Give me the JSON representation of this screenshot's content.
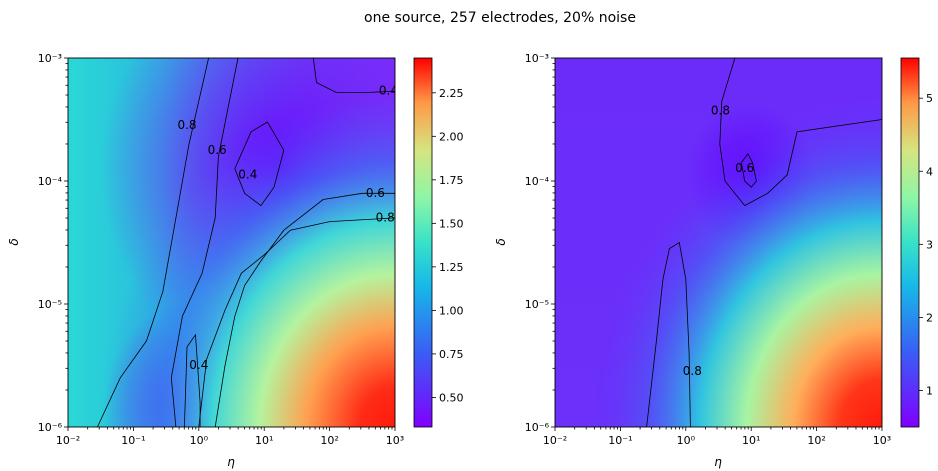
{
  "figure": {
    "title": "one source, 257 electrodes, 20% noise"
  },
  "chart_data": [
    {
      "type": "heatmap",
      "panel": "left",
      "xlabel": "η",
      "ylabel": "δ",
      "xscale": "log",
      "yscale": "log",
      "xlim": [
        0.01,
        1000
      ],
      "ylim": [
        1e-06,
        0.001
      ],
      "xticks": [
        {
          "value": 0.01,
          "label": "10⁻²"
        },
        {
          "value": 0.1,
          "label": "10⁻¹"
        },
        {
          "value": 1,
          "label": "10⁰"
        },
        {
          "value": 10,
          "label": "10¹"
        },
        {
          "value": 100,
          "label": "10²"
        },
        {
          "value": 1000,
          "label": "10³"
        }
      ],
      "yticks": [
        {
          "value": 1e-06,
          "label": "10⁻⁶"
        },
        {
          "value": 1e-05,
          "label": "10⁻⁵"
        },
        {
          "value": 0.0001,
          "label": "10⁻⁴"
        },
        {
          "value": 0.001,
          "label": "10⁻³"
        }
      ],
      "colormap": "rainbow",
      "colorbar": {
        "range": [
          0.33,
          2.45
        ],
        "ticks": [
          {
            "value": 0.5,
            "label": "0.50"
          },
          {
            "value": 0.75,
            "label": "0.75"
          },
          {
            "value": 1.0,
            "label": "1.00"
          },
          {
            "value": 1.25,
            "label": "1.25"
          },
          {
            "value": 1.5,
            "label": "1.50"
          },
          {
            "value": 1.75,
            "label": "1.75"
          },
          {
            "value": 2.0,
            "label": "2.00"
          },
          {
            "value": 2.25,
            "label": "2.25"
          }
        ]
      },
      "z_grid": {
        "x_log10": [
          -2,
          -1.5,
          -1,
          -0.5,
          0,
          0.5,
          1,
          1.5,
          2,
          2.5,
          3
        ],
        "y_log10": [
          -6,
          -5.5,
          -5,
          -4.5,
          -4,
          -3.5,
          -3
        ],
        "values": [
          [
            0.75,
            0.72,
            0.66,
            0.58,
            0.36,
            0.75,
            1.25,
            1.75,
            2.25,
            2.42,
            2.45
          ],
          [
            0.82,
            0.78,
            0.72,
            0.62,
            0.42,
            0.66,
            1.0,
            1.35,
            1.7,
            1.85,
            1.9
          ],
          [
            0.9,
            0.85,
            0.78,
            0.66,
            0.45,
            0.58,
            0.8,
            1.0,
            1.2,
            1.3,
            1.35
          ],
          [
            0.98,
            0.94,
            0.86,
            0.72,
            0.56,
            0.48,
            0.62,
            0.82,
            0.9,
            0.92,
            0.92
          ],
          [
            1.05,
            1.02,
            0.95,
            0.8,
            0.68,
            0.42,
            0.36,
            0.5,
            0.58,
            0.62,
            0.64
          ],
          [
            1.05,
            1.03,
            0.98,
            0.86,
            0.72,
            0.55,
            0.4,
            0.44,
            0.45,
            0.46,
            0.46
          ],
          [
            1.02,
            1.0,
            0.97,
            0.9,
            0.78,
            0.6,
            0.45,
            0.38,
            0.36,
            0.36,
            0.36
          ]
        ]
      },
      "contours": [
        {
          "level": 0.4,
          "label": "0.4",
          "paths": [
            [
              [
                -0.22,
                -6
              ],
              [
                -0.18,
                -5.35
              ],
              [
                -0.05,
                -5.25
              ],
              [
                0.02,
                -5.8
              ],
              [
                0.02,
                -6
              ]
            ],
            [
              [
                0.55,
                -3.9
              ],
              [
                0.8,
                -3.6
              ],
              [
                1.05,
                -3.52
              ],
              [
                1.3,
                -3.75
              ],
              [
                1.15,
                -4.05
              ],
              [
                0.95,
                -4.2
              ],
              [
                0.7,
                -4.1
              ],
              [
                0.55,
                -3.9
              ]
            ],
            [
              [
                1.75,
                -3
              ],
              [
                1.8,
                -3.2
              ],
              [
                2.1,
                -3.28
              ],
              [
                2.6,
                -3.28
              ],
              [
                3,
                -3.27
              ]
            ]
          ],
          "labels": [
            {
              "x": 0.0,
              "y": -5.5
            },
            {
              "x": 0.75,
              "y": -3.95
            },
            {
              "x": 2.9,
              "y": -3.27
            }
          ]
        },
        {
          "level": 0.6,
          "label": "0.6",
          "paths": [
            [
              [
                -0.35,
                -6
              ],
              [
                -0.42,
                -5.6
              ],
              [
                -0.25,
                -5.1
              ],
              [
                0.05,
                -4.75
              ],
              [
                0.25,
                -4.3
              ],
              [
                0.3,
                -3.8
              ],
              [
                0.45,
                -3.4
              ],
              [
                0.6,
                -3
              ]
            ],
            [
              [
                0.25,
                -6
              ],
              [
                0.4,
                -5.5
              ],
              [
                0.55,
                -5.1
              ],
              [
                0.7,
                -4.85
              ],
              [
                0.95,
                -4.65
              ],
              [
                1.3,
                -4.4
              ],
              [
                1.9,
                -4.15
              ],
              [
                2.5,
                -4.1
              ],
              [
                3,
                -4.1
              ]
            ]
          ],
          "labels": [
            {
              "x": 0.28,
              "y": -3.75
            },
            {
              "x": 2.7,
              "y": -4.1
            }
          ]
        },
        {
          "level": 0.8,
          "label": "0.8",
          "paths": [
            [
              [
                -1.55,
                -6
              ],
              [
                -1.2,
                -5.6
              ],
              [
                -0.8,
                -5.3
              ],
              [
                -0.55,
                -4.9
              ],
              [
                -0.35,
                -4.3
              ],
              [
                -0.15,
                -3.7
              ],
              [
                0.15,
                -3
              ]
            ],
            [
              [
                0.0,
                -6
              ],
              [
                0.12,
                -5.45
              ],
              [
                0.4,
                -5.05
              ],
              [
                0.65,
                -4.75
              ],
              [
                1.0,
                -4.6
              ],
              [
                1.4,
                -4.4
              ],
              [
                2.0,
                -4.33
              ],
              [
                3,
                -4.3
              ]
            ]
          ],
          "labels": [
            {
              "x": -0.18,
              "y": -3.55
            },
            {
              "x": 2.85,
              "y": -4.3
            }
          ]
        }
      ]
    },
    {
      "type": "heatmap",
      "panel": "right",
      "xlabel": "η",
      "ylabel": "δ",
      "xscale": "log",
      "yscale": "log",
      "xlim": [
        0.01,
        1000
      ],
      "ylim": [
        1e-06,
        0.001
      ],
      "xticks": [
        {
          "value": 0.01,
          "label": "10⁻²"
        },
        {
          "value": 0.1,
          "label": "10⁻¹"
        },
        {
          "value": 1,
          "label": "10⁰"
        },
        {
          "value": 10,
          "label": "10¹"
        },
        {
          "value": 100,
          "label": "10²"
        },
        {
          "value": 1000,
          "label": "10³"
        }
      ],
      "yticks": [
        {
          "value": 1e-06,
          "label": "10⁻⁶"
        },
        {
          "value": 1e-05,
          "label": "10⁻⁵"
        },
        {
          "value": 0.0001,
          "label": "10⁻⁴"
        },
        {
          "value": 0.001,
          "label": "10⁻³"
        }
      ],
      "colormap": "rainbow",
      "colorbar": {
        "range": [
          0.5,
          5.55
        ],
        "ticks": [
          {
            "value": 1,
            "label": "1"
          },
          {
            "value": 2,
            "label": "2"
          },
          {
            "value": 3,
            "label": "3"
          },
          {
            "value": 4,
            "label": "4"
          },
          {
            "value": 5,
            "label": "5"
          }
        ]
      },
      "z_grid": {
        "x_log10": [
          -2,
          -1.5,
          -1,
          -0.5,
          0,
          0.5,
          1,
          1.5,
          2,
          2.5,
          3
        ],
        "y_log10": [
          -6,
          -5.5,
          -5,
          -4.5,
          -4,
          -3.5,
          -3
        ],
        "values": [
          [
            0.95,
            0.92,
            0.88,
            0.82,
            0.75,
            1.5,
            2.8,
            3.9,
            5.2,
            5.5,
            5.55
          ],
          [
            0.9,
            0.88,
            0.85,
            0.8,
            0.75,
            1.1,
            2.0,
            2.8,
            3.4,
            3.8,
            4.0
          ],
          [
            0.88,
            0.86,
            0.84,
            0.8,
            0.74,
            0.85,
            1.35,
            1.9,
            2.3,
            2.5,
            2.6
          ],
          [
            0.88,
            0.87,
            0.86,
            0.84,
            0.82,
            0.8,
            0.95,
            1.15,
            1.35,
            1.5,
            1.55
          ],
          [
            0.88,
            0.88,
            0.87,
            0.86,
            0.84,
            0.75,
            0.68,
            0.8,
            0.9,
            0.95,
            0.96
          ],
          [
            0.88,
            0.88,
            0.87,
            0.86,
            0.82,
            0.72,
            0.66,
            0.8,
            0.88,
            0.9,
            0.9
          ],
          [
            0.88,
            0.88,
            0.87,
            0.86,
            0.82,
            0.76,
            0.75,
            0.82,
            0.86,
            0.88,
            0.88
          ]
        ]
      },
      "contours": [
        {
          "level": 0.6,
          "label": "0.6",
          "paths": [
            [
              [
                0.85,
                -3.85
              ],
              [
                0.95,
                -3.78
              ],
              [
                1.02,
                -3.85
              ],
              [
                1.08,
                -4.0
              ],
              [
                1.0,
                -4.05
              ],
              [
                0.9,
                -4.0
              ],
              [
                0.85,
                -3.85
              ]
            ]
          ],
          "labels": [
            {
              "x": 0.9,
              "y": -3.9
            }
          ]
        },
        {
          "level": 0.8,
          "label": "0.8",
          "paths": [
            [
              [
                0.07,
                -6
              ],
              [
                0.05,
                -5.4
              ],
              [
                0.0,
                -4.8
              ],
              [
                -0.1,
                -4.5
              ],
              [
                -0.25,
                -4.55
              ],
              [
                -0.35,
                -4.8
              ],
              [
                -0.45,
                -5.3
              ],
              [
                -0.6,
                -6
              ]
            ],
            [
              [
                0.75,
                -3
              ],
              [
                0.55,
                -3.35
              ],
              [
                0.52,
                -3.7
              ],
              [
                0.6,
                -4.0
              ],
              [
                0.9,
                -4.2
              ],
              [
                1.25,
                -4.1
              ],
              [
                1.55,
                -3.95
              ],
              [
                1.7,
                -3.6
              ],
              [
                3,
                -3.5
              ]
            ]
          ],
          "labels": [
            {
              "x": 0.1,
              "y": -5.55
            },
            {
              "x": 0.53,
              "y": -3.43
            }
          ]
        }
      ]
    }
  ]
}
